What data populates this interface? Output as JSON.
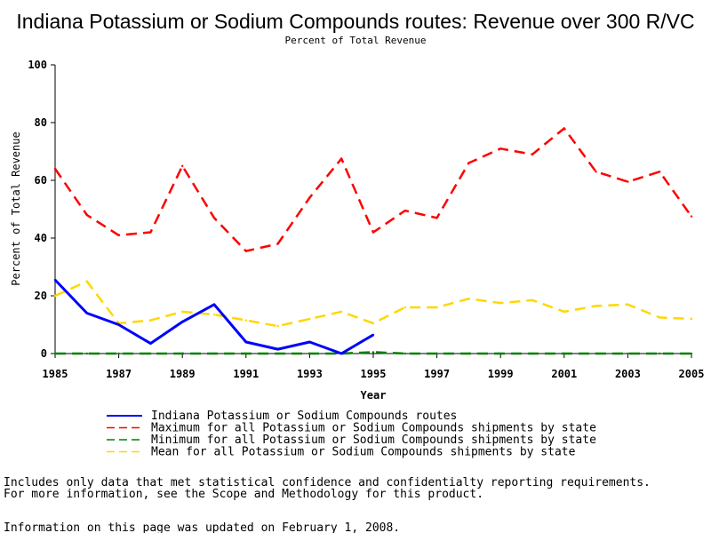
{
  "chart_data": {
    "type": "line",
    "title": "Indiana Potassium or Sodium Compounds routes: Revenue over 300 R/VC",
    "subtitle": "Percent of Total Revenue",
    "xlabel": "Year",
    "ylabel": "Percent of Total Revenue",
    "xlim": [
      1985,
      2005
    ],
    "ylim": [
      0,
      100
    ],
    "x_ticks": [
      "1985",
      "1987",
      "1989",
      "1991",
      "1993",
      "1995",
      "1997",
      "1999",
      "2001",
      "2003",
      "2005"
    ],
    "y_ticks": [
      "0",
      "20",
      "40",
      "60",
      "80",
      "100"
    ],
    "grid": false,
    "legend_position": "bottom",
    "series": [
      {
        "name": "Indiana Potassium or Sodium Compounds routes",
        "color": "#0000ff",
        "style": "solid",
        "x": [
          1985,
          1986,
          1987,
          1988,
          1989,
          1990,
          1991,
          1992,
          1993,
          1994,
          1995
        ],
        "values": [
          25.5,
          14,
          10,
          3.5,
          11,
          17,
          4,
          1.5,
          4,
          0,
          6.5
        ]
      },
      {
        "name": "Maximum for all Potassium or Sodium Compounds shipments by state",
        "color": "#ff0000",
        "style": "dashed",
        "x": [
          1985,
          1986,
          1987,
          1988,
          1989,
          1990,
          1991,
          1992,
          1993,
          1994,
          1995,
          1996,
          1997,
          1998,
          1999,
          2000,
          2001,
          2002,
          2003,
          2004,
          2005
        ],
        "values": [
          64,
          48,
          41,
          42,
          65,
          47,
          35.5,
          38,
          54,
          67.5,
          42,
          49.5,
          47,
          66,
          71,
          69,
          78,
          63,
          59.5,
          63,
          47.5
        ]
      },
      {
        "name": "Minimum for all Potassium or Sodium Compounds shipments by state",
        "color": "#008000",
        "style": "dashed",
        "x": [
          1985,
          1986,
          1987,
          1988,
          1989,
          1990,
          1991,
          1992,
          1993,
          1994,
          1995,
          1996,
          1997,
          1998,
          1999,
          2000,
          2001,
          2002,
          2003,
          2004,
          2005
        ],
        "values": [
          0,
          0,
          0,
          0,
          0,
          0,
          0,
          0,
          0,
          0,
          0.5,
          0,
          0,
          0,
          0,
          0,
          0,
          0,
          0,
          0,
          0
        ]
      },
      {
        "name": "Mean for all Potassium or Sodium Compounds shipments by state",
        "color": "#ffd700",
        "style": "dashed",
        "x": [
          1985,
          1986,
          1987,
          1988,
          1989,
          1990,
          1991,
          1992,
          1993,
          1994,
          1995,
          1996,
          1997,
          1998,
          1999,
          2000,
          2001,
          2002,
          2003,
          2004,
          2005
        ],
        "values": [
          20,
          25,
          10.5,
          11.5,
          14.5,
          13.5,
          11.5,
          9.5,
          12,
          14.5,
          10.5,
          16,
          16,
          19,
          17.5,
          18.5,
          14.5,
          16.5,
          17,
          12.5,
          12
        ]
      }
    ]
  },
  "notes": {
    "line1": "Includes only data that met statistical confidence and confidentialty reporting requirements.",
    "line2": "For more information, see the Scope and Methodology for this product.",
    "updated": "Information on this page was updated on February 1, 2008."
  }
}
